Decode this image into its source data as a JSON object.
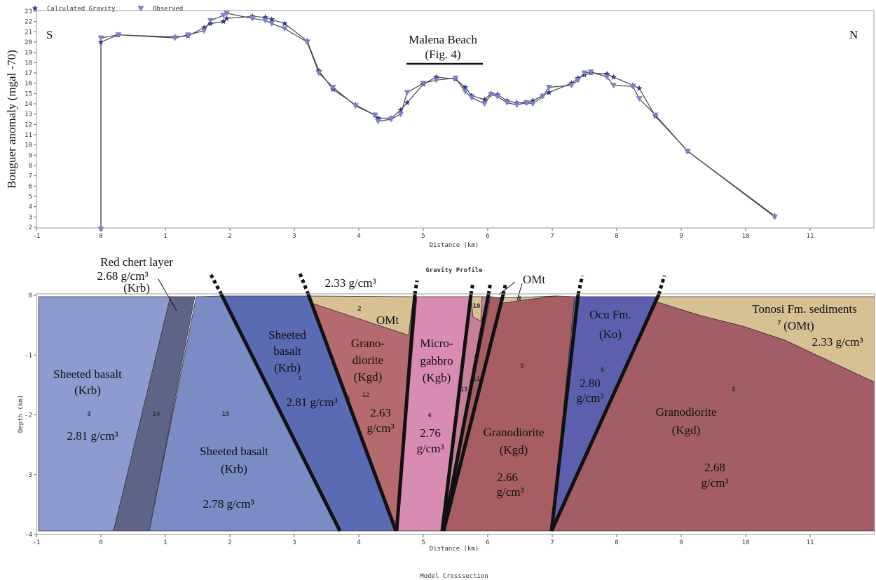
{
  "chart_data": [
    {
      "type": "line",
      "legend": [
        "Calculated Gravity",
        "Observed"
      ],
      "y_label": "Bouguer anomaly (mgal -70)",
      "x_label": "Distance (km)",
      "left_label": "S",
      "right_label": "N",
      "annotation": [
        "Malena Beach",
        "(Fig. 4)"
      ],
      "x": [
        0,
        0,
        0.27,
        1.15,
        1.35,
        1.6,
        1.7,
        1.9,
        1.95,
        2.35,
        2.55,
        2.65,
        2.85,
        3.2,
        3.38,
        3.6,
        3.95,
        4.25,
        4.3,
        4.5,
        4.65,
        4.75,
        5.0,
        5.2,
        5.5,
        5.65,
        5.75,
        5.95,
        6.05,
        6.15,
        6.3,
        6.45,
        6.6,
        6.7,
        6.85,
        6.95,
        7.3,
        7.4,
        7.5,
        7.6,
        7.85,
        7.95,
        8.25,
        8.35,
        8.6,
        9.1,
        10.45
      ],
      "series": [
        {
          "name": "Calculated Gravity",
          "color": "#2b3a8c",
          "marker": "star",
          "values": [
            1.9,
            20.0,
            20.7,
            20.5,
            20.6,
            21.4,
            21.8,
            22.0,
            22.3,
            22.5,
            22.4,
            22.2,
            21.8,
            20.1,
            17.2,
            15.4,
            13.9,
            12.9,
            12.6,
            12.6,
            13.4,
            14.1,
            15.9,
            16.6,
            16.4,
            15.6,
            14.8,
            14.4,
            15.0,
            14.9,
            14.3,
            14.1,
            14.1,
            14.3,
            14.8,
            15.1,
            16.0,
            16.5,
            16.8,
            17.0,
            16.9,
            16.6,
            15.8,
            15.5,
            12.8,
            9.4,
            3.1
          ]
        },
        {
          "name": "Observed",
          "color": "#7f80c9",
          "marker": "triangle",
          "values": [
            1.8,
            20.4,
            20.7,
            20.4,
            20.7,
            21.1,
            22.1,
            22.6,
            22.8,
            22.3,
            22.1,
            21.8,
            21.3,
            20.0,
            17.0,
            15.6,
            13.8,
            12.9,
            12.3,
            12.5,
            13.0,
            15.1,
            16.0,
            16.3,
            16.5,
            15.2,
            14.6,
            14.0,
            14.9,
            14.7,
            14.1,
            13.9,
            14.1,
            14.0,
            14.7,
            15.6,
            15.8,
            16.3,
            17.0,
            17.1,
            16.6,
            15.8,
            15.7,
            14.5,
            12.9,
            9.4,
            3.0
          ]
        }
      ],
      "xlim": [
        -1,
        12
      ],
      "ylim": [
        2,
        23
      ],
      "xticks": [
        -1,
        0,
        1,
        2,
        3,
        4,
        5,
        6,
        7,
        8,
        9,
        10,
        11
      ],
      "yticks": [
        2,
        3,
        4,
        5,
        6,
        7,
        8,
        9,
        10,
        11,
        12,
        13,
        14,
        15,
        16,
        17,
        18,
        19,
        20,
        21,
        22,
        23
      ],
      "caption": "Gravity Profile"
    },
    {
      "type": "cross-section",
      "x_label": "Distance (km)",
      "y_label": "Depth (km)",
      "xlim": [
        -1,
        12
      ],
      "ylim": [
        -4,
        0
      ],
      "xticks": [
        -1,
        0,
        1,
        2,
        3,
        4,
        5,
        6,
        7,
        8,
        9,
        10,
        11
      ],
      "yticks": [
        0,
        -1,
        -2,
        -3,
        -4
      ],
      "labels": [
        [
          "Red chert layer",
          "2.68 g/cm³",
          "(Krb)"
        ],
        [
          "2.33 g/cm³"
        ],
        [
          "OMt"
        ],
        [
          "Sheeted basalt",
          "(Krb)",
          "2.81 g/cm³"
        ],
        [
          "Sheeted basalt",
          "(Krb)",
          "2.78 g/cm³"
        ],
        [
          "Sheeted",
          "basalt",
          "(Krb)",
          "2.81 g/cm³"
        ],
        [
          "Grano-",
          "diorite",
          "(Kgd)",
          "2.63",
          "g/cm³"
        ],
        [
          "OMt"
        ],
        [
          "Micro-",
          "gabbro",
          "(Kgb)",
          "2.76",
          "g/cm³"
        ],
        [
          "Granodiorite",
          "(Kgd)",
          "2.66",
          "g/cm³"
        ],
        [
          "Ocu Fm.",
          "(Ko)"
        ],
        [
          "2.80",
          "g/cm³"
        ],
        [
          "Granodiorite",
          "(Kgd)",
          "2.68",
          "g/cm³"
        ],
        [
          "Tonosi Fm. sediments",
          "(OMt)",
          "2.33 g/cm³"
        ]
      ],
      "body_ids": [
        "3",
        "14",
        "15",
        "1",
        "3",
        "2",
        "12",
        "4",
        "10",
        "13",
        "11",
        "9",
        "5",
        "6",
        "7",
        "8"
      ],
      "caption": "Model Crosssection"
    }
  ]
}
